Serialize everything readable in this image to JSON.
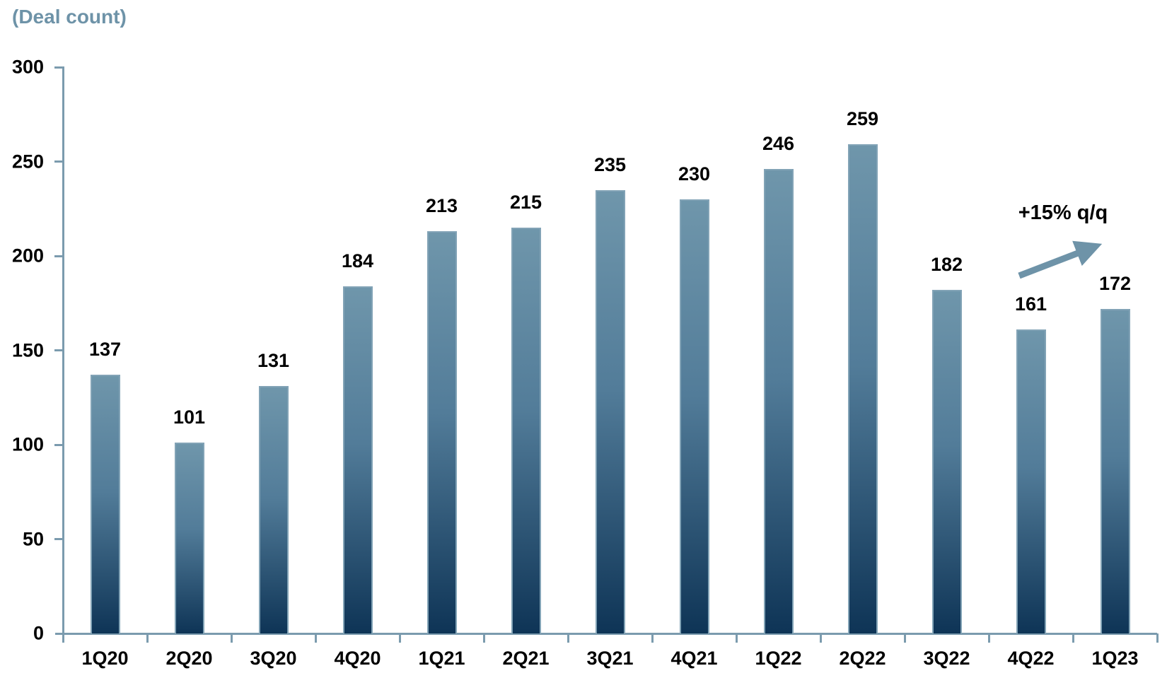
{
  "chart_data": {
    "type": "bar",
    "title": "(Deal count)",
    "categories": [
      "1Q20",
      "2Q20",
      "3Q20",
      "4Q20",
      "1Q21",
      "2Q21",
      "3Q21",
      "4Q21",
      "1Q22",
      "2Q22",
      "3Q22",
      "4Q22",
      "1Q23"
    ],
    "values": [
      137,
      101,
      131,
      184,
      213,
      215,
      235,
      230,
      246,
      259,
      182,
      161,
      172
    ],
    "xlabel": "",
    "ylabel": "(Deal count)",
    "ylim": [
      0,
      300
    ],
    "yticks": [
      0,
      50,
      100,
      150,
      200,
      250,
      300
    ],
    "grid": false,
    "legend": "none",
    "annotation": {
      "text": "+15% q/q",
      "shape": "up-right-arrow"
    },
    "colors": {
      "bar_gradient_top": "#6F96AB",
      "bar_gradient_mid": "#527C99",
      "bar_gradient_bottom": "#0E3456",
      "bar_border": "#82A3B6",
      "axis": "#7B9BAE",
      "title_text": "#6E93A8",
      "arrow": "#6E93A8",
      "label_text": "#000000"
    }
  }
}
